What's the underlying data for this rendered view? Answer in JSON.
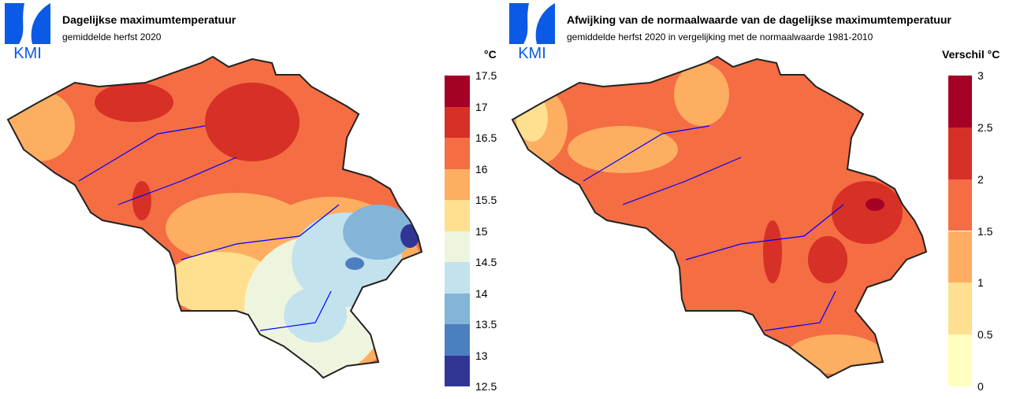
{
  "left": {
    "title": "Dagelijkse maximumtemperatuur",
    "subtitle": "gemiddelde herfst 2020",
    "unit": "°C",
    "logo": "KMI",
    "legend": {
      "ticks": [
        "17.5",
        "17",
        "16.5",
        "16",
        "15.5",
        "15",
        "14.5",
        "14",
        "13.5",
        "13",
        "12.5"
      ],
      "colors": [
        "#a50026",
        "#d73027",
        "#f46d43",
        "#fdae61",
        "#fee090",
        "#eef5df",
        "#c2e2ee",
        "#82b5d7",
        "#4c7fbf",
        "#313695"
      ]
    }
  },
  "right": {
    "title": "Afwijking van de normaalwaarde van de dagelijkse maximumtemperatuur",
    "subtitle": "gemiddelde herfst 2020 in vergelijking met de normaalwaarde 1981-2010",
    "unit": "Verschil °C",
    "logo": "KMI",
    "legend": {
      "ticks": [
        "3",
        "2.5",
        "2",
        "1.5",
        "1",
        "0.5",
        "0"
      ],
      "colors": [
        "#a50026",
        "#d73027",
        "#f46d43",
        "#fdae61",
        "#fee090",
        "#ffffc0"
      ]
    }
  }
}
